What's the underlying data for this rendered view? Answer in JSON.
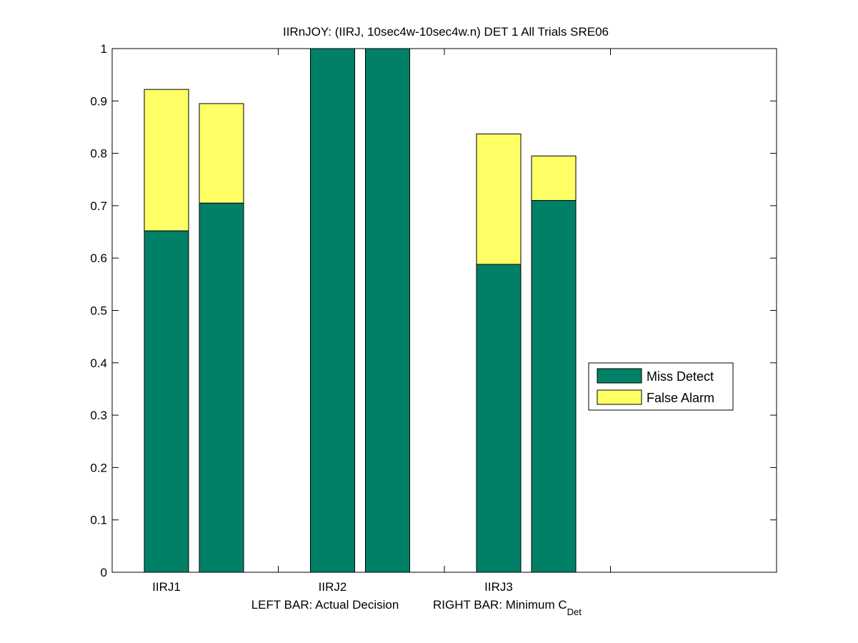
{
  "chart_data": {
    "type": "bar",
    "stacked": true,
    "title": "IIRnJOY: (IIRJ, 10sec4w-10sec4w.n) DET 1 All Trials SRE06",
    "xlabel_parts": {
      "left": "LEFT BAR: Actual Decision",
      "right_prefix": "RIGHT BAR: Minimum C",
      "right_subscript": "Det"
    },
    "ylabel": "",
    "ylim": [
      0,
      1
    ],
    "yticks": [
      "0",
      "0.1",
      "0.2",
      "0.3",
      "0.4",
      "0.5",
      "0.6",
      "0.7",
      "0.8",
      "0.9",
      "1"
    ],
    "categories": [
      "IIRJ1",
      "IIRJ2",
      "IIRJ3"
    ],
    "bar_groups": [
      {
        "category": "IIRJ1",
        "bars": [
          {
            "miss": 0.652,
            "fa": 0.27
          },
          {
            "miss": 0.705,
            "fa": 0.19
          }
        ]
      },
      {
        "category": "IIRJ2",
        "bars": [
          {
            "miss": 1.0,
            "fa": 0.0
          },
          {
            "miss": 1.0,
            "fa": 0.0
          }
        ]
      },
      {
        "category": "IIRJ3",
        "bars": [
          {
            "miss": 0.588,
            "fa": 0.249
          },
          {
            "miss": 0.71,
            "fa": 0.085
          }
        ]
      }
    ],
    "series": [
      {
        "name": "Miss Detect",
        "color": "#008066"
      },
      {
        "name": "False Alarm",
        "color": "#ffff66"
      }
    ],
    "legend_position": "right",
    "grid": false
  }
}
